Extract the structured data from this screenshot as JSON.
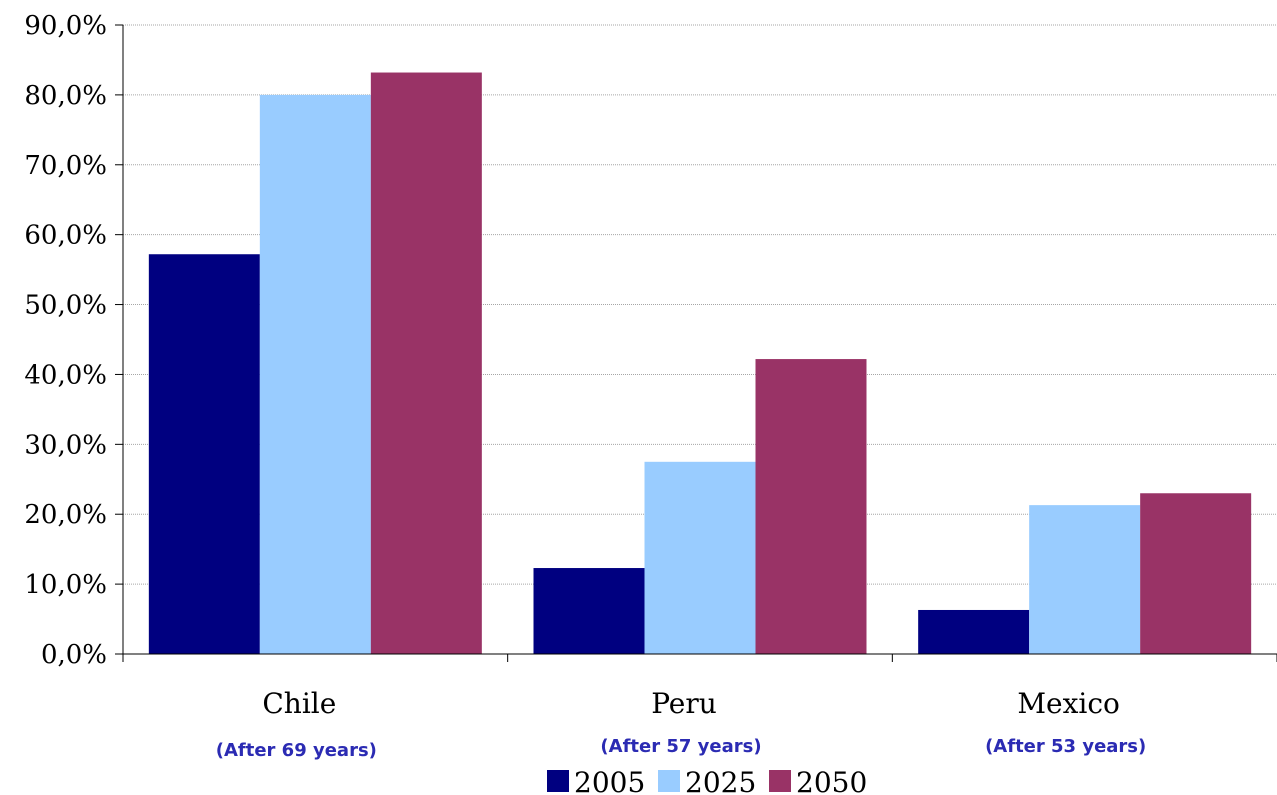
{
  "chart_data": {
    "type": "bar",
    "categories": [
      "Chile",
      "Peru",
      "Mexico"
    ],
    "category_notes": [
      "(After 69 years)",
      "(After 57 years)",
      "(After 53 years)"
    ],
    "series": [
      {
        "name": "2005",
        "values": [
          57.2,
          12.3,
          6.3
        ],
        "color": "#000080"
      },
      {
        "name": "2025",
        "values": [
          80.0,
          27.5,
          21.3
        ],
        "color": "#99ccff"
      },
      {
        "name": "2050",
        "values": [
          83.2,
          42.2,
          23.0
        ],
        "color": "#993366"
      }
    ],
    "ylim": [
      0,
      90
    ],
    "ytick_values": [
      0,
      10,
      20,
      30,
      40,
      50,
      60,
      70,
      80,
      90
    ],
    "ytick_labels": [
      "0,0%",
      "10,0%",
      "20,0%",
      "30,0%",
      "40,0%",
      "50,0%",
      "60,0%",
      "70,0%",
      "80,0%",
      "90,0%"
    ],
    "grid": true,
    "legend_position": "bottom",
    "title": "",
    "xlabel": "",
    "ylabel": ""
  }
}
